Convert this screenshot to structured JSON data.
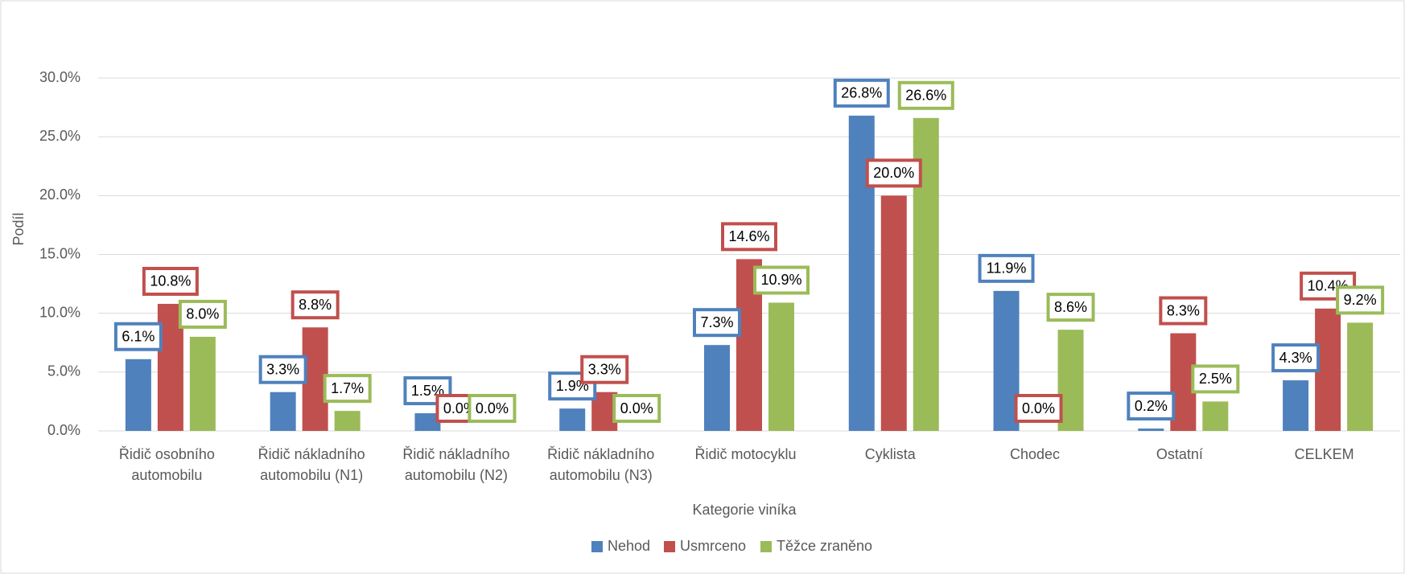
{
  "chart_data": {
    "type": "bar",
    "x_label": "Kategorie viníka",
    "y_label": "Podíl",
    "categories": [
      "Řidič osobního automobilu",
      "Řidič nákladního automobilu (N1)",
      "Řidič nákladního automobilu (N2)",
      "Řidič nákladního automobilu (N3)",
      "Řidič motocyklu",
      "Cyklista",
      "Chodec",
      "Ostatní",
      "CELKEM"
    ],
    "series": [
      {
        "name": "Nehod",
        "color": "#4f81bd",
        "values": [
          6.1,
          3.3,
          1.5,
          1.9,
          7.3,
          26.8,
          11.9,
          0.2,
          4.3
        ],
        "value_labels": [
          "6.1%",
          "3.3%",
          "1.5%",
          "1.9%",
          "7.3%",
          "26.8%",
          "11.9%",
          "0.2%",
          "4.3%"
        ]
      },
      {
        "name": "Usmrceno",
        "color": "#c0504d",
        "values": [
          10.8,
          8.8,
          0.0,
          3.3,
          14.6,
          20.0,
          0.0,
          8.3,
          10.4
        ],
        "value_labels": [
          "10.8%",
          "8.8%",
          "0.0%",
          "3.3%",
          "14.6%",
          "20.0%",
          "0.0%",
          "8.3%",
          "10.4%"
        ]
      },
      {
        "name": "Těžce zraněno",
        "color": "#9bbb59",
        "values": [
          8.0,
          1.7,
          0.0,
          0.0,
          10.9,
          26.6,
          8.6,
          2.5,
          9.2
        ],
        "value_labels": [
          "8.0%",
          "1.7%",
          "0.0%",
          "0.0%",
          "10.9%",
          "26.6%",
          "8.6%",
          "2.5%",
          "9.2%"
        ]
      }
    ],
    "ylim": [
      0,
      30
    ],
    "yticks": [
      {
        "value": 0,
        "label": "0.0%"
      },
      {
        "value": 5,
        "label": "5.0%"
      },
      {
        "value": 10,
        "label": "10.0%"
      },
      {
        "value": 15,
        "label": "15.0%"
      },
      {
        "value": 20,
        "label": "20.0%"
      },
      {
        "value": 25,
        "label": "25.0%"
      },
      {
        "value": 30,
        "label": "30.0%"
      }
    ],
    "grid": true,
    "legend": "bottom"
  }
}
